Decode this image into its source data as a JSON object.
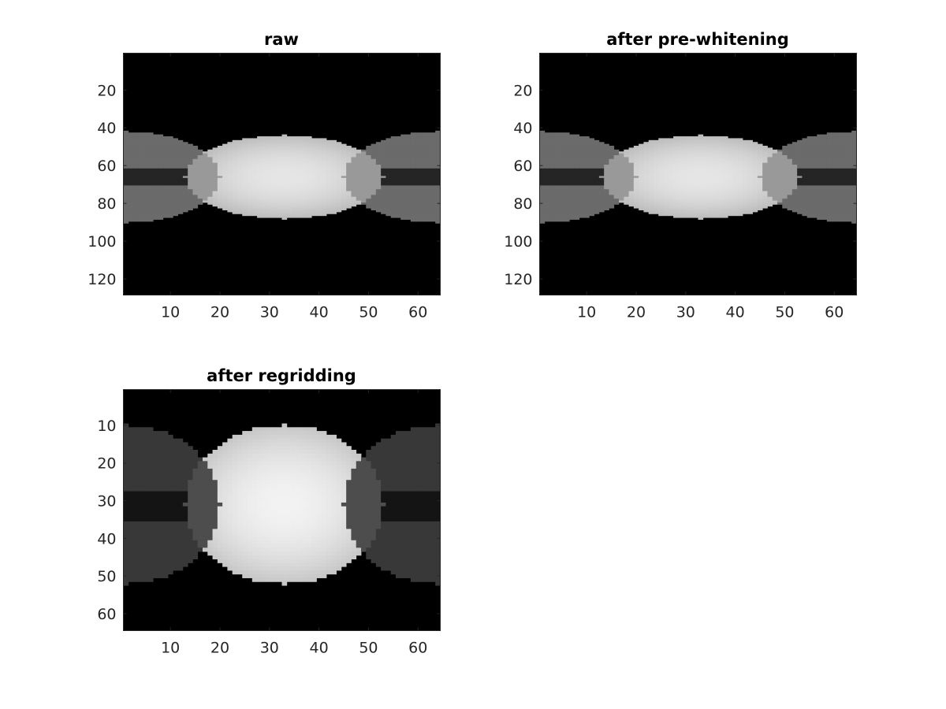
{
  "chart_data": [
    {
      "type": "heatmap",
      "title": "raw",
      "colormap": "gray",
      "image_size": [
        128,
        64
      ],
      "xlim": [
        0.5,
        64.5
      ],
      "ylim": [
        0.5,
        128.5
      ],
      "y_direction": "reverse",
      "xticks": [
        10,
        20,
        30,
        40,
        50,
        60
      ],
      "yticks": [
        20,
        40,
        60,
        80,
        100,
        120
      ],
      "content": {
        "center_ellipse": {
          "cx": 33,
          "cy": 66,
          "rx": 20,
          "ry": 22,
          "peak": 0.9
        },
        "side_lobes": [
          {
            "cx": 1,
            "cy": 66,
            "rx": 19,
            "ry": 24,
            "level": 0.42
          },
          {
            "cx": 64,
            "cy": 66,
            "rx": 19,
            "ry": 24,
            "level": 0.42
          }
        ],
        "overlap_level": 0.6,
        "center_dark_row_band": [
          62,
          70
        ]
      }
    },
    {
      "type": "heatmap",
      "title": "after pre-whitening",
      "colormap": "gray",
      "image_size": [
        128,
        64
      ],
      "xlim": [
        0.5,
        64.5
      ],
      "ylim": [
        0.5,
        128.5
      ],
      "y_direction": "reverse",
      "xticks": [
        10,
        20,
        30,
        40,
        50,
        60
      ],
      "yticks": [
        20,
        40,
        60,
        80,
        100,
        120
      ],
      "content": {
        "center_ellipse": {
          "cx": 33,
          "cy": 66,
          "rx": 20,
          "ry": 22,
          "peak": 0.9
        },
        "side_lobes": [
          {
            "cx": 1,
            "cy": 66,
            "rx": 19,
            "ry": 24,
            "level": 0.42
          },
          {
            "cx": 64,
            "cy": 66,
            "rx": 19,
            "ry": 24,
            "level": 0.42
          }
        ],
        "overlap_level": 0.6,
        "center_dark_row_band": [
          62,
          70
        ]
      }
    },
    {
      "type": "heatmap",
      "title": "after regridding",
      "colormap": "gray",
      "image_size": [
        64,
        64
      ],
      "xlim": [
        0.5,
        64.5
      ],
      "ylim": [
        0.5,
        64.5
      ],
      "y_direction": "reverse",
      "xticks": [
        10,
        20,
        30,
        40,
        50,
        60
      ],
      "yticks": [
        10,
        20,
        30,
        40,
        50,
        60
      ],
      "content": {
        "center_ellipse": {
          "cx": 33,
          "cy": 31,
          "rx": 20,
          "ry": 21,
          "peak": 0.95
        },
        "side_lobes": [
          {
            "cx": 1,
            "cy": 31,
            "rx": 19,
            "ry": 21,
            "level": 0.22
          },
          {
            "cx": 64,
            "cy": 31,
            "rx": 19,
            "ry": 21,
            "level": 0.22
          }
        ],
        "overlap_level": 0.3,
        "center_dark_row_band": [
          28,
          35
        ]
      }
    }
  ]
}
